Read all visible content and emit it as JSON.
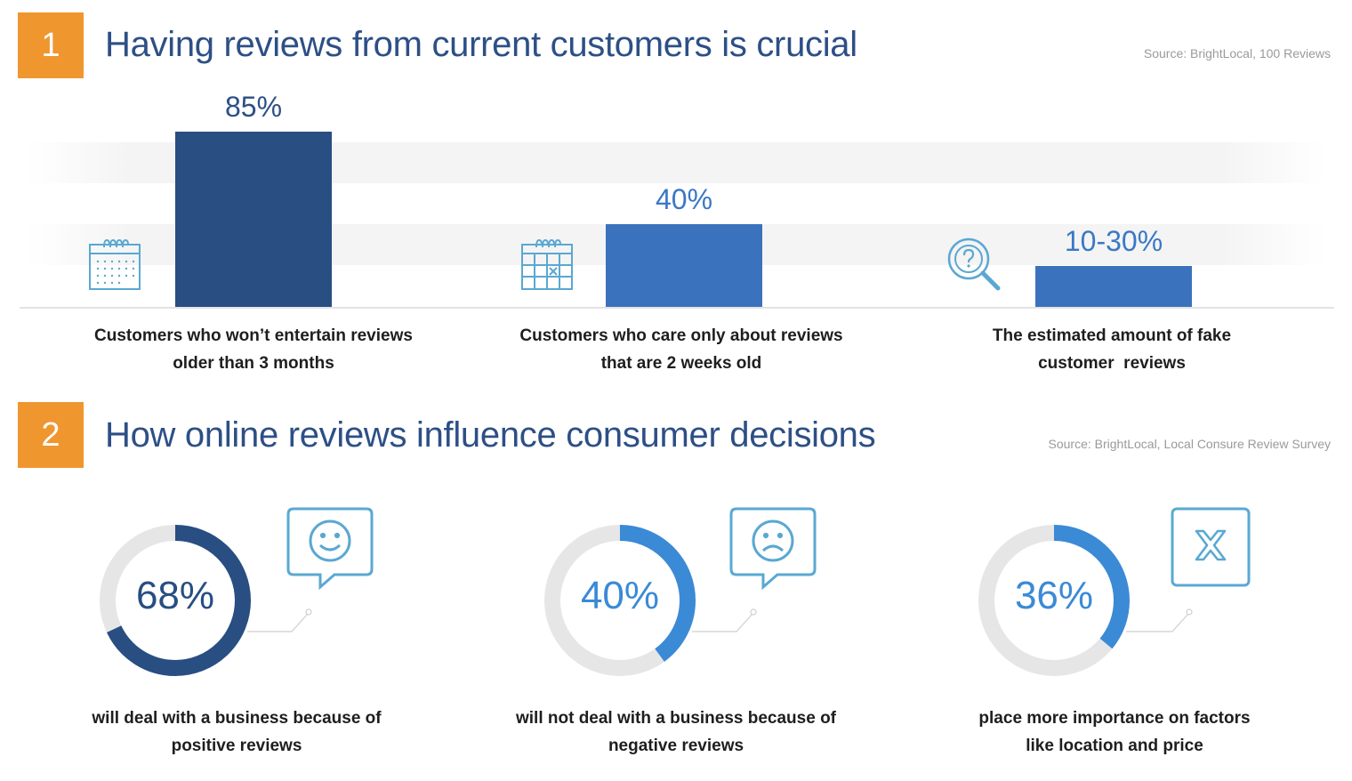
{
  "section1": {
    "number": "1",
    "title": "Having reviews from current customers is crucial",
    "source": "Source: BrightLocal, 100 Reviews"
  },
  "section2": {
    "number": "2",
    "title": "How online reviews influence consumer decisions",
    "source": "Source: BrightLocal, Local Consure Review Survey"
  },
  "colors": {
    "accent_orange": "#f0962f",
    "title_blue": "#2d4f86",
    "dark_blue": "#284e82",
    "mid_blue": "#3b74c0",
    "bright_blue": "#3a8ad6",
    "track_gray": "#e6e6e6",
    "icon_blue": "#5aa8d2"
  },
  "chart_data": [
    {
      "type": "bar",
      "categories": [
        "Customers who won’t entertain reviews older than 3 months",
        "Customers who care only about reviews that are 2 weeks old",
        "The estimated amount of fake customer reviews"
      ],
      "values": [
        85,
        40,
        20
      ],
      "value_labels": [
        "85%",
        "40%",
        "10-30%"
      ],
      "caption_lines": [
        [
          "Customers who won’t entertain reviews",
          "older than 3 months"
        ],
        [
          "Customers who care only about reviews",
          "that are 2 weeks old"
        ],
        [
          "The estimated amount of fake",
          "customer  reviews"
        ]
      ],
      "icons": [
        "calendar-icon",
        "calendar-marked-icon",
        "question-magnifier-icon"
      ],
      "bar_colors": [
        "#284e82",
        "#3b72bd",
        "#3b72bd"
      ],
      "label_colors": [
        "#2d4f86",
        "#3a78c6",
        "#3a78c6"
      ],
      "ylim": [
        0,
        100
      ],
      "grid": true
    },
    {
      "type": "pie",
      "categories": [
        "will deal with a business because of positive reviews",
        "will not deal with a business because of negative reviews",
        "place more importance on factors like location and price"
      ],
      "values": [
        68,
        40,
        36
      ],
      "value_labels": [
        "68%",
        "40%",
        "36%"
      ],
      "caption_lines": [
        [
          "will deal with a business because of",
          "positive reviews"
        ],
        [
          "will not deal with a business because of",
          "negative reviews"
        ],
        [
          "place more importance on factors",
          "like location and price"
        ]
      ],
      "icons": [
        "smiley-bubble-icon",
        "sad-bubble-icon",
        "x-box-icon"
      ],
      "ring_colors": [
        "#284e82",
        "#3a8ad6",
        "#3a8ad6"
      ],
      "label_colors": [
        "#284e82",
        "#3a8ad6",
        "#3a8ad6"
      ]
    }
  ]
}
